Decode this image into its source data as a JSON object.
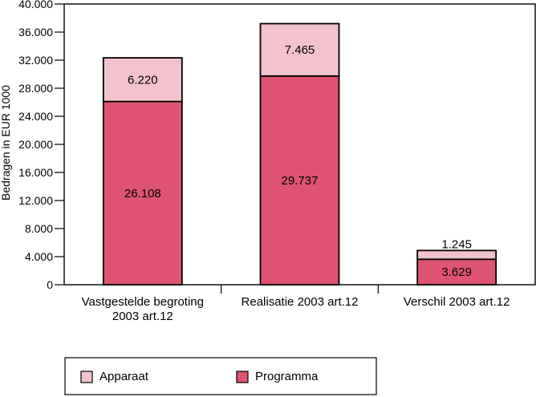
{
  "chart_data": {
    "type": "bar",
    "stacked": true,
    "title": "",
    "xlabel": "",
    "ylabel": "Bedragen in EUR 1000",
    "ylim": [
      0,
      40000
    ],
    "yticks": [
      0,
      4000,
      8000,
      12000,
      16000,
      20000,
      24000,
      28000,
      32000,
      36000,
      40000
    ],
    "ytick_labels": [
      "0",
      "4.000",
      "8.000",
      "12.000",
      "16.000",
      "20.000",
      "24.000",
      "28.000",
      "32.000",
      "36.000",
      "40.000"
    ],
    "categories": [
      [
        "Vastgestelde begroting",
        "2003 art.12"
      ],
      [
        "Realisatie 2003 art.12"
      ],
      [
        "Verschil 2003 art.12"
      ]
    ],
    "series": [
      {
        "name": "Programma",
        "color": "#de5470",
        "values": [
          26108,
          29737,
          3629
        ],
        "labels": [
          "26.108",
          "29.737",
          "3.629"
        ]
      },
      {
        "name": "Apparaat",
        "color": "#f3c3cd",
        "values": [
          6220,
          7465,
          1245
        ],
        "labels": [
          "6.220",
          "7.465",
          "1.245"
        ]
      }
    ],
    "legend": {
      "placement": "bottom",
      "order": [
        "Apparaat",
        "Programma"
      ]
    },
    "grid": false
  }
}
